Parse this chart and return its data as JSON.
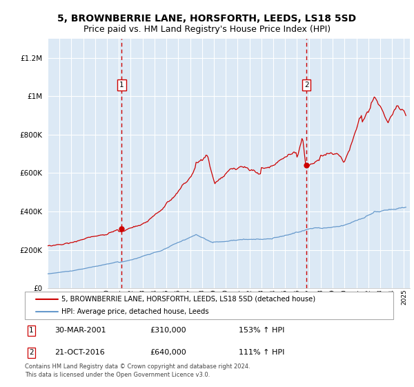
{
  "title": "5, BROWNBERRIE LANE, HORSFORTH, LEEDS, LS18 5SD",
  "subtitle": "Price paid vs. HM Land Registry's House Price Index (HPI)",
  "legend_line1": "5, BROWNBERRIE LANE, HORSFORTH, LEEDS, LS18 5SD (detached house)",
  "legend_line2": "HPI: Average price, detached house, Leeds",
  "footnote": "Contains HM Land Registry data © Crown copyright and database right 2024.\nThis data is licensed under the Open Government Licence v3.0.",
  "sale1_date": "30-MAR-2001",
  "sale1_price": 310000,
  "sale1_label": "153% ↑ HPI",
  "sale2_date": "21-OCT-2016",
  "sale2_price": 640000,
  "sale2_label": "111% ↑ HPI",
  "ylim": [
    0,
    1300000
  ],
  "xlim_start": 1995.0,
  "xlim_end": 2025.5,
  "vline1_x": 2001.24,
  "vline2_x": 2016.8,
  "background_color": "#ffffff",
  "plot_bg_color": "#dce9f5",
  "grid_color": "#ffffff",
  "red_line_color": "#cc0000",
  "blue_line_color": "#6699cc",
  "vline_color": "#cc0000",
  "title_fontsize": 10,
  "subtitle_fontsize": 9
}
